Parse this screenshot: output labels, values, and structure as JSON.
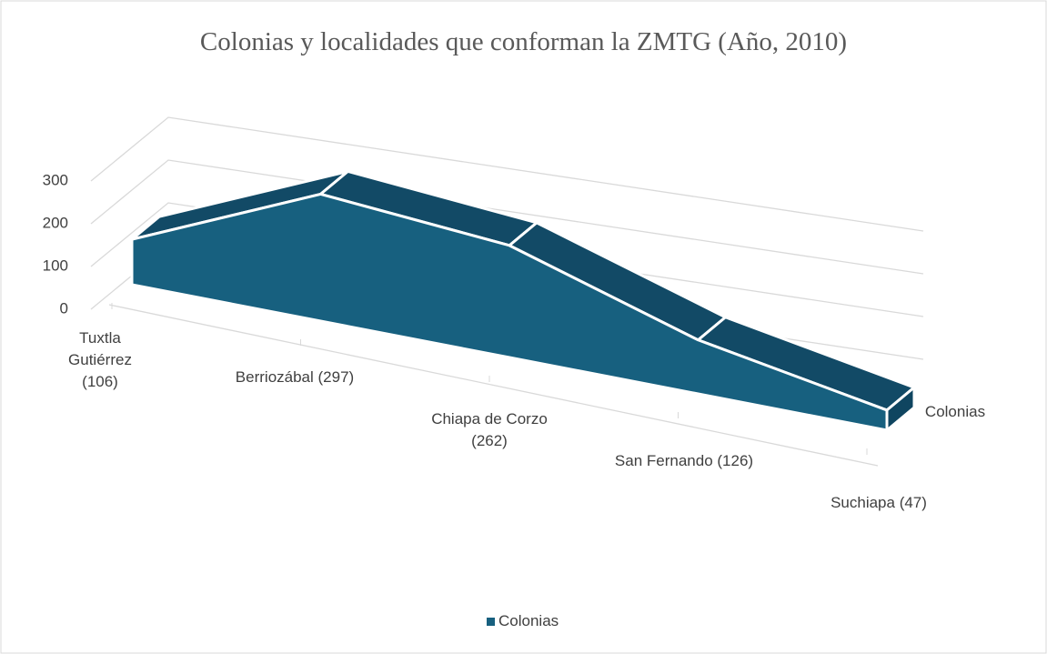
{
  "chart_data": {
    "type": "area3d",
    "title": "Colonias y localidades que conforman la ZMTG (Año, 2010)",
    "categories": [
      "Tuxtla Gutiérrez (106)",
      "Berriozábal (297)",
      "Chiapa de Corzo (262)",
      "San Fernando (126)",
      "Suchiapa (47)"
    ],
    "series": [
      {
        "name": "Colonias",
        "color": "#17607f",
        "values": [
          106,
          297,
          262,
          126,
          47
        ]
      }
    ],
    "ylim": [
      0,
      300
    ],
    "yticks": [
      0,
      100,
      200,
      300
    ],
    "grid": true,
    "legend": "bottom"
  }
}
